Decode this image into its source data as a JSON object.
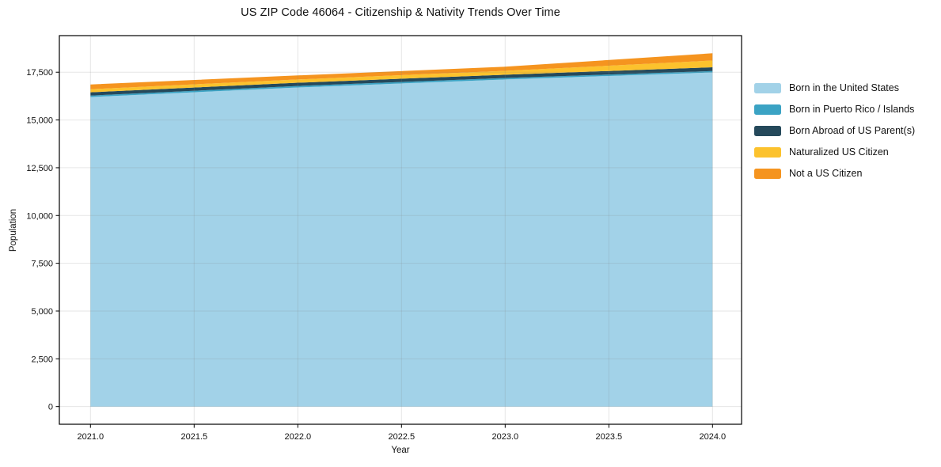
{
  "title": "US ZIP Code 46064 - Citizenship & Nativity Trends Over Time",
  "axes": {
    "xlabel": "Year",
    "ylabel": "Population",
    "xticks": [
      {
        "value": 2021.0,
        "label": "2021.0"
      },
      {
        "value": 2021.5,
        "label": "2021.5"
      },
      {
        "value": 2022.0,
        "label": "2022.0"
      },
      {
        "value": 2022.5,
        "label": "2022.5"
      },
      {
        "value": 2023.0,
        "label": "2023.0"
      },
      {
        "value": 2023.5,
        "label": "2023.5"
      },
      {
        "value": 2024.0,
        "label": "2024.0"
      }
    ],
    "yticks": [
      {
        "value": 0,
        "label": "0"
      },
      {
        "value": 2500,
        "label": "2,500"
      },
      {
        "value": 5000,
        "label": "5,000"
      },
      {
        "value": 7500,
        "label": "7,500"
      },
      {
        "value": 10000,
        "label": "10,000"
      },
      {
        "value": 12500,
        "label": "12,500"
      },
      {
        "value": 15000,
        "label": "15,000"
      },
      {
        "value": 17500,
        "label": "17,500"
      }
    ]
  },
  "chart_data": {
    "type": "area",
    "stacked": true,
    "title": "US ZIP Code 46064 - Citizenship & Nativity Trends Over Time",
    "xlabel": "Year",
    "ylabel": "Population",
    "x": [
      2021,
      2022,
      2023,
      2024
    ],
    "series": [
      {
        "name": "Born in the United States",
        "color": "#a2d2e8",
        "values": [
          16200,
          16700,
          17120,
          17490
        ]
      },
      {
        "name": "Born in Puerto Rico / Islands",
        "color": "#3ba3c4",
        "values": [
          80,
          80,
          80,
          70
        ]
      },
      {
        "name": "Born Abroad of US Parent(s)",
        "color": "#25495b",
        "values": [
          170,
          170,
          170,
          200
        ]
      },
      {
        "name": "Naturalized US Citizen",
        "color": "#fcc22d",
        "values": [
          160,
          170,
          200,
          350
        ]
      },
      {
        "name": "Not a US Citizen",
        "color": "#f5941f",
        "values": [
          250,
          210,
          215,
          380
        ]
      }
    ],
    "totals": [
      16860,
      17330,
      17785,
      18490
    ],
    "xlim": [
      2020.85,
      2024.14
    ],
    "ylim": [
      -925,
      19415
    ],
    "grid": true,
    "legend_position": "right",
    "colors": {
      "background": "#ffffff",
      "frame": "#000000",
      "tick_text": "#111111",
      "gridline": "rgba(128,128,128,0.2)"
    }
  }
}
